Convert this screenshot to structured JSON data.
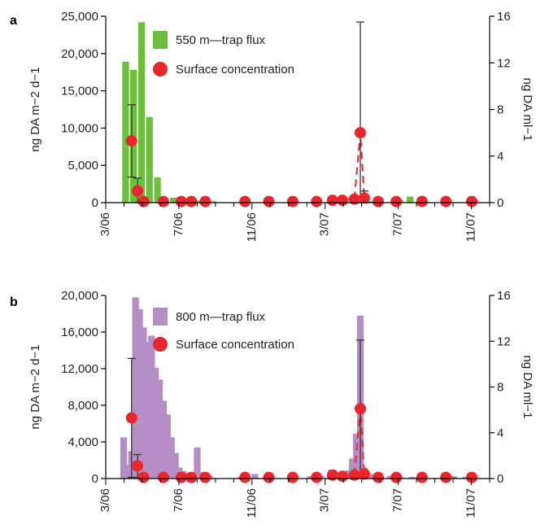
{
  "chart_data": [
    {
      "panel": "a",
      "type": "bar",
      "ylabel": "ng DA m−2 d−1",
      "y2label": "ng DA ml−1",
      "ylim": [
        0,
        25000
      ],
      "y2lim": [
        0,
        16
      ],
      "yticks": [
        "0",
        "5,000",
        "10,000",
        "15,000",
        "20,000",
        "25,000"
      ],
      "y2ticks": [
        "0",
        "4",
        "8",
        "12",
        "16"
      ],
      "xticks": [
        "3/06",
        "7/06",
        "11/06",
        "3/07",
        "7/07",
        "11/07"
      ],
      "bar_color": "#6cbf3a",
      "point_color": "#e8262b",
      "legend": {
        "bar": "550 m—trap flux",
        "point": "Surface concentration"
      },
      "bars": [
        {
          "x": 1.0,
          "value": 18900
        },
        {
          "x": 1.4,
          "value": 17800
        },
        {
          "x": 1.8,
          "value": 24200
        },
        {
          "x": 2.2,
          "value": 11500
        },
        {
          "x": 2.6,
          "value": 3400
        },
        {
          "x": 3.0,
          "value": 200
        },
        {
          "x": 3.4,
          "value": 650
        },
        {
          "x": 3.8,
          "value": 600
        },
        {
          "x": 4.2,
          "value": 250
        },
        {
          "x": 4.6,
          "value": 300
        },
        {
          "x": 5.0,
          "value": 150
        },
        {
          "x": 5.4,
          "value": 200
        },
        {
          "x": 13.3,
          "value": 200
        },
        {
          "x": 13.8,
          "value": 400
        },
        {
          "x": 14.8,
          "value": 350
        },
        {
          "x": 15.3,
          "value": 800
        }
      ],
      "points": [
        {
          "x": 1.3,
          "y": 5.3,
          "err": 3.1
        },
        {
          "x": 1.6,
          "y": 1.0,
          "err": 1.1
        },
        {
          "x": 1.9,
          "y": 0.1
        },
        {
          "x": 2.9,
          "y": 0.1
        },
        {
          "x": 3.8,
          "y": 0.1
        },
        {
          "x": 4.3,
          "y": 0.1
        },
        {
          "x": 5.0,
          "y": 0.1
        },
        {
          "x": 7.0,
          "y": 0.1
        },
        {
          "x": 8.2,
          "y": 0.1
        },
        {
          "x": 9.4,
          "y": 0.1
        },
        {
          "x": 10.6,
          "y": 0.1
        },
        {
          "x": 11.4,
          "y": 0.2,
          "err": 0.3
        },
        {
          "x": 11.9,
          "y": 0.2
        },
        {
          "x": 12.5,
          "y": 0.3
        },
        {
          "x": 12.8,
          "y": 6.0,
          "err": 9.5
        },
        {
          "x": 13.0,
          "y": 0.4,
          "err": 0.6
        },
        {
          "x": 13.7,
          "y": 0.1
        },
        {
          "x": 14.6,
          "y": 0.1
        },
        {
          "x": 15.9,
          "y": 0.1
        },
        {
          "x": 17.1,
          "y": 0.1
        },
        {
          "x": 18.4,
          "y": 0.1
        }
      ],
      "dashed_line_segments": [
        [
          11.9,
          12.5,
          12.8,
          13.0
        ]
      ]
    },
    {
      "panel": "b",
      "type": "bar",
      "ylabel": "ng DA m−2 d−1",
      "y2label": "ng DA ml−1",
      "ylim": [
        0,
        20000
      ],
      "y2lim": [
        0,
        16
      ],
      "yticks": [
        "0",
        "4,000",
        "8,000",
        "12,000",
        "16,000",
        "20,000"
      ],
      "y2ticks": [
        "0",
        "4",
        "8",
        "12",
        "16"
      ],
      "xticks": [
        "3/06",
        "7/06",
        "11/06",
        "3/07",
        "7/07",
        "11/07"
      ],
      "bar_color": "#b68ec6",
      "point_color": "#e8262b",
      "legend": {
        "bar": "800 m—trap flux",
        "point": "Surface concentration"
      },
      "bars": [
        {
          "x": 0.9,
          "value": 4500
        },
        {
          "x": 1.1,
          "value": 1500
        },
        {
          "x": 1.3,
          "value": 3000
        },
        {
          "x": 1.5,
          "value": 19800
        },
        {
          "x": 1.7,
          "value": 18500
        },
        {
          "x": 1.9,
          "value": 16500
        },
        {
          "x": 2.1,
          "value": 14900
        },
        {
          "x": 2.3,
          "value": 15600
        },
        {
          "x": 2.5,
          "value": 12100
        },
        {
          "x": 2.7,
          "value": 10800
        },
        {
          "x": 2.9,
          "value": 8500
        },
        {
          "x": 3.1,
          "value": 7000
        },
        {
          "x": 3.3,
          "value": 4500
        },
        {
          "x": 3.5,
          "value": 2800
        },
        {
          "x": 3.7,
          "value": 1200
        },
        {
          "x": 3.9,
          "value": 800
        },
        {
          "x": 4.1,
          "value": 600
        },
        {
          "x": 4.3,
          "value": 300
        },
        {
          "x": 4.6,
          "value": 3400
        },
        {
          "x": 4.9,
          "value": 700
        },
        {
          "x": 5.2,
          "value": 300
        },
        {
          "x": 6.8,
          "value": 200
        },
        {
          "x": 7.5,
          "value": 500
        },
        {
          "x": 10.3,
          "value": 250
        },
        {
          "x": 10.8,
          "value": 300
        },
        {
          "x": 11.3,
          "value": 400
        },
        {
          "x": 11.8,
          "value": 350
        },
        {
          "x": 12.2,
          "value": 900
        },
        {
          "x": 12.4,
          "value": 2200
        },
        {
          "x": 12.6,
          "value": 4900
        },
        {
          "x": 12.8,
          "value": 17800
        },
        {
          "x": 13.0,
          "value": 1200
        },
        {
          "x": 13.3,
          "value": 500
        },
        {
          "x": 13.8,
          "value": 250
        },
        {
          "x": 14.3,
          "value": 300
        },
        {
          "x": 14.8,
          "value": 200
        },
        {
          "x": 15.4,
          "value": 200
        },
        {
          "x": 17.5,
          "value": 250
        },
        {
          "x": 18.1,
          "value": 200
        }
      ],
      "points": [
        {
          "x": 1.3,
          "y": 5.3,
          "err": 5.2
        },
        {
          "x": 1.6,
          "y": 1.1,
          "err": 1.0
        },
        {
          "x": 1.9,
          "y": 0.1
        },
        {
          "x": 2.9,
          "y": 0.1
        },
        {
          "x": 3.8,
          "y": 0.1
        },
        {
          "x": 4.3,
          "y": 0.1
        },
        {
          "x": 5.0,
          "y": 0.1
        },
        {
          "x": 7.0,
          "y": 0.1
        },
        {
          "x": 8.2,
          "y": 0.1
        },
        {
          "x": 9.4,
          "y": 0.1
        },
        {
          "x": 10.6,
          "y": 0.1
        },
        {
          "x": 11.4,
          "y": 0.3,
          "err": 0.4
        },
        {
          "x": 11.9,
          "y": 0.2
        },
        {
          "x": 12.5,
          "y": 0.3
        },
        {
          "x": 12.8,
          "y": 6.1,
          "err": 6.0
        },
        {
          "x": 13.0,
          "y": 0.4
        },
        {
          "x": 13.7,
          "y": 0.1
        },
        {
          "x": 14.6,
          "y": 0.1
        },
        {
          "x": 15.9,
          "y": 0.1
        },
        {
          "x": 17.1,
          "y": 0.1
        },
        {
          "x": 18.4,
          "y": 0.1
        }
      ],
      "dashed_line_segments": [
        [
          11.9,
          12.5,
          12.8,
          13.0
        ]
      ]
    }
  ]
}
